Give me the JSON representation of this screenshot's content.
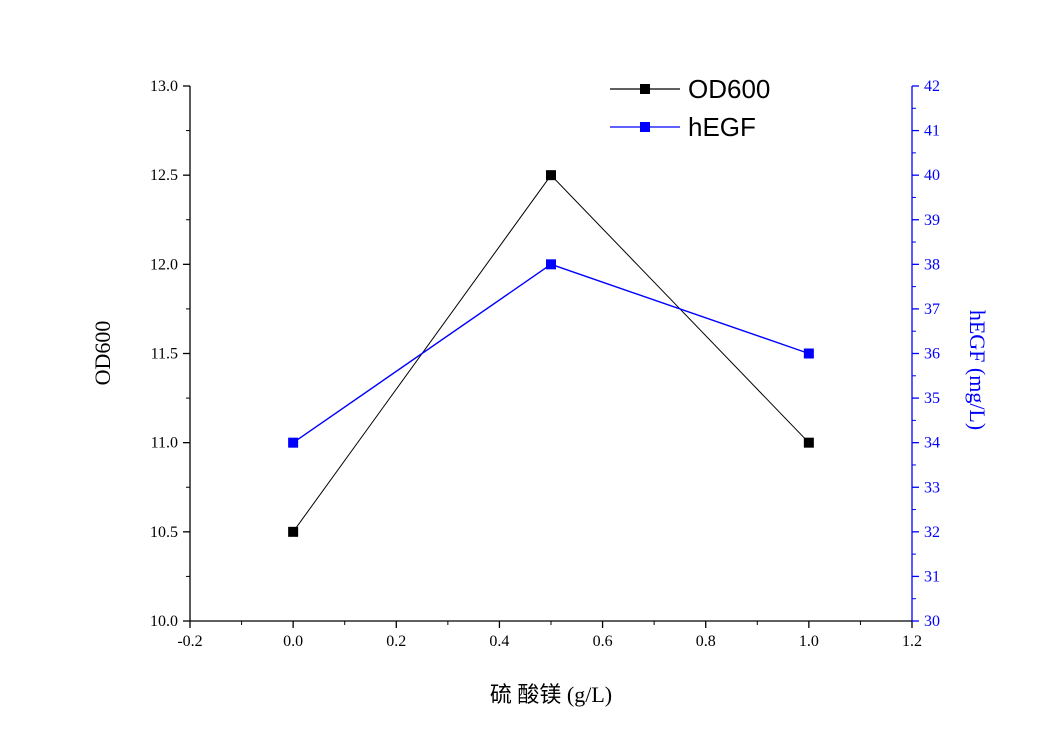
{
  "chart_data": {
    "type": "line",
    "xlabel": "硫 酸镁  (g/L)",
    "ylabel_left": "OD600",
    "ylabel_right": "hEGF (mg/L)",
    "xlim": [
      -0.2,
      1.2
    ],
    "xticks": [
      "-0.2",
      "0.0",
      "0.2",
      "0.4",
      "0.6",
      "0.8",
      "1.0",
      "1.2"
    ],
    "ylim_left": [
      10.0,
      13.0
    ],
    "yticks_left": [
      "10.0",
      "10.5",
      "11.0",
      "11.5",
      "12.0",
      "12.5",
      "13.0"
    ],
    "ylim_right": [
      30,
      42
    ],
    "yticks_right": [
      "30",
      "31",
      "32",
      "33",
      "34",
      "35",
      "36",
      "37",
      "38",
      "39",
      "40",
      "41",
      "42"
    ],
    "grid": false,
    "legend_position": "top-right",
    "series": [
      {
        "name": "OD600",
        "axis": "left",
        "color": "#000000",
        "x": [
          0.0,
          0.5,
          1.0
        ],
        "y": [
          10.5,
          12.5,
          11.0
        ]
      },
      {
        "name": "hEGF",
        "axis": "right",
        "color": "#0000ff",
        "x": [
          0.0,
          0.5,
          1.0
        ],
        "y": [
          34,
          38,
          36
        ]
      }
    ]
  }
}
